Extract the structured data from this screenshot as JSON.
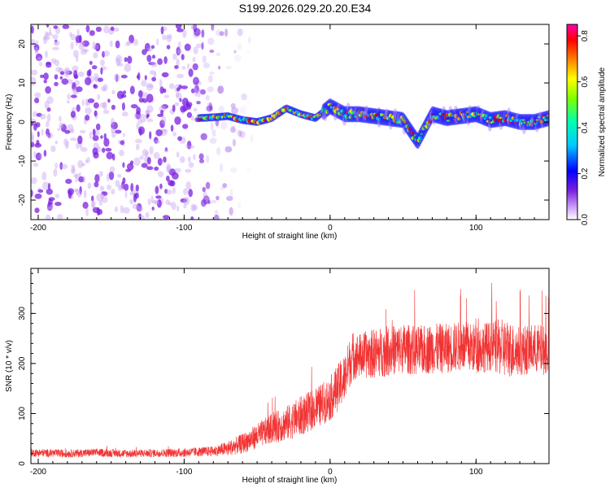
{
  "title": "S199.2026.029.20.20.E34",
  "colors": {
    "snr_line": "#f23333",
    "purple_noise": "#7a1fe0",
    "axis": "#000000"
  },
  "chart_data": [
    {
      "type": "heatmap",
      "xlabel": "Height of straight line (km)",
      "ylabel": "Frequency (Hz)",
      "xlim": [
        -205,
        150
      ],
      "ylim": [
        -25,
        25
      ],
      "xticks": [
        -200,
        -100,
        0,
        100
      ],
      "yticks": [
        -20,
        -10,
        0,
        10,
        20
      ],
      "colorbar": {
        "label": "Normalized spectral amplitude",
        "range": [
          0.0,
          0.85
        ],
        "ticks": [
          "0.0",
          "0.2",
          "0.4",
          "0.6",
          "0.8"
        ],
        "colormap": "rainbow (white/violet to red)"
      },
      "noise_region_x": [
        -205,
        -70
      ],
      "trace": {
        "description": "",
        "x": [
          -90,
          -80,
          -70,
          -60,
          -50,
          -40,
          -30,
          -20,
          -10,
          0,
          10,
          20,
          30,
          40,
          50,
          60,
          70,
          80,
          90,
          100,
          110,
          120,
          130,
          140,
          150
        ],
        "frequency": [
          1.0,
          1.2,
          1.5,
          0.5,
          0.0,
          1.0,
          3.5,
          2.0,
          1.0,
          4.0,
          2.0,
          2.0,
          1.5,
          1.0,
          0.5,
          -5.0,
          2.0,
          1.0,
          1.5,
          2.0,
          0.5,
          1.0,
          0.0,
          0.0,
          1.0
        ]
      }
    },
    {
      "type": "line",
      "xlabel": "Height of straight line (km)",
      "ylabel": "SNR (10 * v/v)",
      "xlim": [
        -205,
        150
      ],
      "ylim": [
        0,
        390
      ],
      "xticks": [
        -200,
        -100,
        0,
        100
      ],
      "yticks": [
        0,
        100,
        200,
        300
      ],
      "series": [
        {
          "name": "",
          "x": [
            -205,
            -180,
            -160,
            -140,
            -120,
            -100,
            -80,
            -70,
            -60,
            -50,
            -40,
            -30,
            -20,
            -10,
            0,
            10,
            15,
            20,
            30,
            40,
            50,
            60,
            70,
            80,
            90,
            100,
            110,
            120,
            130,
            140,
            150
          ],
          "y": [
            22,
            20,
            22,
            20,
            21,
            22,
            25,
            30,
            40,
            55,
            70,
            80,
            95,
            110,
            130,
            170,
            215,
            215,
            220,
            225,
            230,
            225,
            230,
            230,
            235,
            230,
            235,
            230,
            225,
            230,
            225
          ],
          "spread": [
            8,
            8,
            8,
            8,
            8,
            9,
            10,
            15,
            20,
            25,
            30,
            35,
            40,
            40,
            45,
            50,
            50,
            45,
            50,
            50,
            50,
            50,
            50,
            50,
            50,
            50,
            50,
            60,
            50,
            50,
            50
          ]
        }
      ]
    }
  ]
}
